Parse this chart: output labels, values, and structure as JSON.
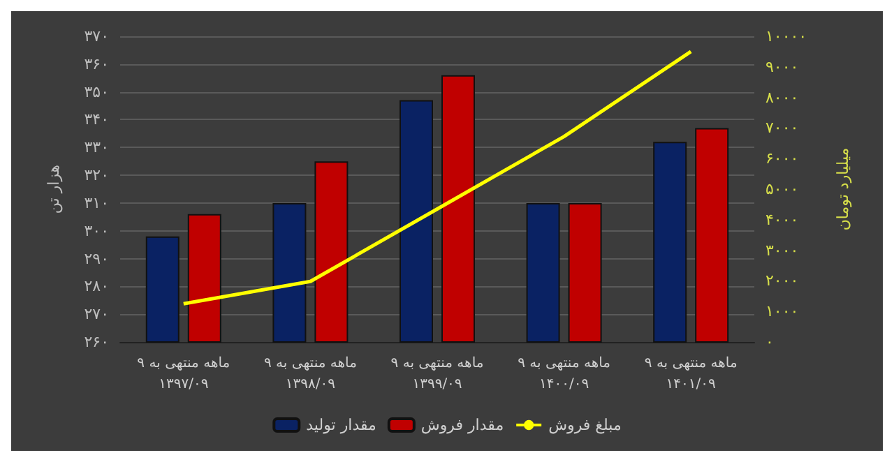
{
  "chart_data": {
    "type": "bar",
    "categories": [
      "۹ ماهه منتهی به\n۱۳۹۷/۰۹",
      "۹ ماهه منتهی به\n۱۳۹۸/۰۹",
      "۹ ماهه منتهی به\n۱۳۹۹/۰۹",
      "۹ ماهه منتهی به\n۱۴۰۰/۰۹",
      "۹ ماهه منتهی به\n۱۴۰۱/۰۹"
    ],
    "series": [
      {
        "name": "مقدار تولید",
        "color": "#0a2263",
        "values": [
          298,
          310,
          347,
          310,
          332
        ]
      },
      {
        "name": "مقدار فروش",
        "color": "#c00000",
        "values": [
          306,
          325,
          356,
          310,
          337
        ]
      },
      {
        "name": "مبلغ فروش",
        "type": "line",
        "axis": "y2",
        "color": "#ffff00",
        "values": [
          1250,
          1980,
          4350,
          6720,
          9500
        ]
      }
    ],
    "ylabel": "هزار تن",
    "y2label": "میلیارد تومان",
    "ylim": [
      260,
      370
    ],
    "yticks": [
      {
        "value": 260,
        "label": "۲۶۰"
      },
      {
        "value": 270,
        "label": "۲۷۰"
      },
      {
        "value": 280,
        "label": "۲۸۰"
      },
      {
        "value": 290,
        "label": "۲۹۰"
      },
      {
        "value": 300,
        "label": "۳۰۰"
      },
      {
        "value": 310,
        "label": "۳۱۰"
      },
      {
        "value": 320,
        "label": "۳۲۰"
      },
      {
        "value": 330,
        "label": "۳۳۰"
      },
      {
        "value": 340,
        "label": "۳۴۰"
      },
      {
        "value": 350,
        "label": "۳۵۰"
      },
      {
        "value": 360,
        "label": "۳۶۰"
      },
      {
        "value": 370,
        "label": "۳۷۰"
      }
    ],
    "y2lim": [
      0,
      10000
    ],
    "y2ticks": [
      {
        "value": 0,
        "label": "۰"
      },
      {
        "value": 1000,
        "label": "۱۰۰۰"
      },
      {
        "value": 2000,
        "label": "۲۰۰۰"
      },
      {
        "value": 3000,
        "label": "۳۰۰۰"
      },
      {
        "value": 4000,
        "label": "۴۰۰۰"
      },
      {
        "value": 5000,
        "label": "۵۰۰۰"
      },
      {
        "value": 6000,
        "label": "۶۰۰۰"
      },
      {
        "value": 7000,
        "label": "۷۰۰۰"
      },
      {
        "value": 8000,
        "label": "۸۰۰۰"
      },
      {
        "value": 9000,
        "label": "۹۰۰۰"
      },
      {
        "value": 10000,
        "label": "۱۰۰۰۰"
      }
    ],
    "grid": "y",
    "legend": "bottom",
    "marker": "none",
    "line_style": "solid"
  }
}
